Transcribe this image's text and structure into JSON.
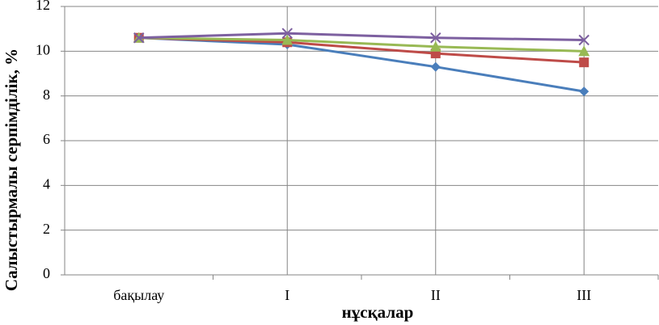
{
  "chart_data": {
    "type": "line",
    "y_label": "Салыстырмалы серпімділік, %",
    "x_label": "нұсқалар",
    "categories": [
      "бақылау",
      "I",
      "II",
      "III"
    ],
    "series": [
      {
        "color": "#4a7ebb",
        "marker": "diamond",
        "values": [
          10.6,
          10.3,
          9.3,
          8.2
        ]
      },
      {
        "color": "#be4b48",
        "marker": "square",
        "values": [
          10.6,
          10.4,
          9.9,
          9.5
        ]
      },
      {
        "color": "#98b954",
        "marker": "triangle",
        "values": [
          10.6,
          10.5,
          10.2,
          10.0
        ]
      },
      {
        "color": "#7d60a0",
        "marker": "x",
        "values": [
          10.6,
          10.8,
          10.6,
          10.5
        ]
      }
    ],
    "ylim": [
      0,
      12
    ],
    "yticks": [
      0,
      2,
      4,
      6,
      8,
      10,
      12
    ],
    "grid": true
  }
}
